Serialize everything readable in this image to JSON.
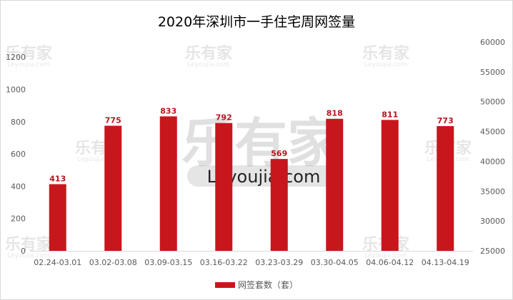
{
  "chart_data": {
    "type": "bar",
    "title": "2020年深圳市一手住宅周网签量",
    "categories": [
      "02.24-03.01",
      "03.02-03.08",
      "03.09-03.15",
      "03.16-03.22",
      "03.23-03.29",
      "03.30-04.05",
      "04.06-04.12",
      "04.13-04.19"
    ],
    "series": [
      {
        "name": "网签套数（套）",
        "values": [
          413,
          775,
          833,
          792,
          569,
          818,
          811,
          773
        ],
        "color": "#c8161d"
      }
    ],
    "y_left": {
      "ticks": [
        0,
        200,
        400,
        600,
        800,
        1000,
        1200
      ],
      "ylim": [
        0,
        1300
      ]
    },
    "y_right": {
      "ticks": [
        25000,
        30000,
        35000,
        40000,
        45000,
        50000,
        55000,
        60000
      ],
      "ylim": [
        25000,
        60000
      ]
    },
    "grid": false,
    "legend": "bottom",
    "data_labels": true
  },
  "watermarks": {
    "brand": "乐有家",
    "site": "Leyoujia.com"
  }
}
